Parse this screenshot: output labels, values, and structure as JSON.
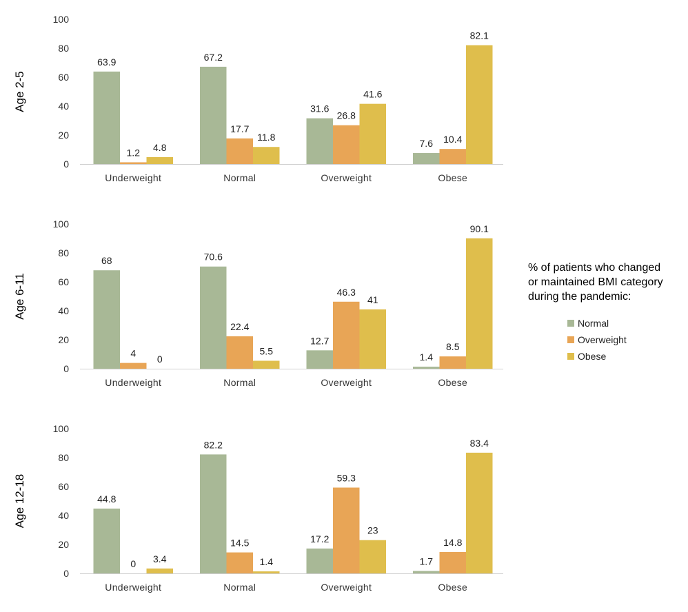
{
  "colors": {
    "Normal": "#a8b896",
    "Overweight": "#e8a556",
    "Obese": "#dfbe4c",
    "axis": "#cfcfcf"
  },
  "legend": {
    "title_lines": [
      "% of patients who changed",
      "or maintained BMI category",
      "during the pandemic:"
    ],
    "items": [
      "Normal",
      "Overweight",
      "Obese"
    ]
  },
  "chart_data": [
    {
      "type": "bar",
      "row_label": "Age 2-5",
      "categories": [
        "Underweight",
        "Normal",
        "Overweight",
        "Obese"
      ],
      "ylim": [
        0,
        100
      ],
      "yticks": [
        0,
        20,
        40,
        60,
        80,
        100
      ],
      "series": [
        {
          "name": "Normal",
          "values": [
            63.9,
            67.2,
            31.6,
            7.6
          ]
        },
        {
          "name": "Overweight",
          "values": [
            1.2,
            17.7,
            26.8,
            10.4
          ]
        },
        {
          "name": "Obese",
          "values": [
            4.8,
            11.8,
            41.6,
            82.1
          ]
        }
      ]
    },
    {
      "type": "bar",
      "row_label": "Age 6-11",
      "categories": [
        "Underweight",
        "Normal",
        "Overweight",
        "Obese"
      ],
      "ylim": [
        0,
        100
      ],
      "yticks": [
        0,
        20,
        40,
        60,
        80,
        100
      ],
      "series": [
        {
          "name": "Normal",
          "values": [
            68,
            70.6,
            12.7,
            1.4
          ]
        },
        {
          "name": "Overweight",
          "values": [
            4,
            22.4,
            46.3,
            8.5
          ]
        },
        {
          "name": "Obese",
          "values": [
            0,
            5.5,
            41,
            90.1
          ]
        }
      ]
    },
    {
      "type": "bar",
      "row_label": "Age 12-18",
      "categories": [
        "Underweight",
        "Normal",
        "Overweight",
        "Obese"
      ],
      "ylim": [
        0,
        100
      ],
      "yticks": [
        0,
        20,
        40,
        60,
        80,
        100
      ],
      "series": [
        {
          "name": "Normal",
          "values": [
            44.8,
            82.2,
            17.2,
            1.7
          ]
        },
        {
          "name": "Overweight",
          "values": [
            0,
            14.5,
            59.3,
            14.8
          ]
        },
        {
          "name": "Obese",
          "values": [
            3.4,
            1.4,
            23,
            83.4
          ]
        }
      ]
    }
  ]
}
